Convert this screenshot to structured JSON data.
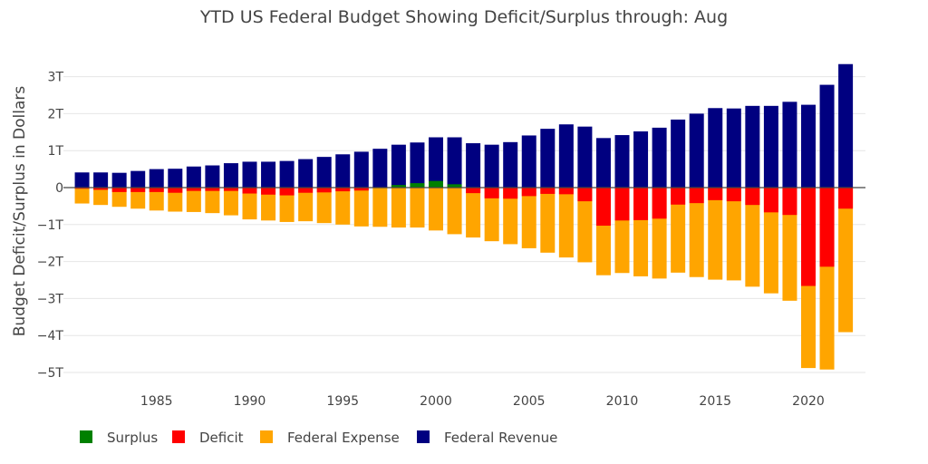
{
  "chart_data": {
    "type": "bar",
    "title": "YTD US Federal Budget Showing Deficit/Surplus through: Aug",
    "xlabel": "",
    "ylabel": "Budget Deficit/Surplus in Dollars",
    "ylim": [
      -5.5,
      3.6
    ],
    "xlim": [
      1980.4,
      2022.7
    ],
    "y_ticks": [
      3,
      2,
      1,
      0,
      -1,
      -2,
      -3,
      -4,
      -5
    ],
    "y_tick_labels": [
      "3T",
      "2T",
      "1T",
      "0",
      "−1T",
      "−2T",
      "−3T",
      "−4T",
      "−5T"
    ],
    "x_ticks": [
      1985,
      1990,
      1995,
      2000,
      2005,
      2010,
      2015,
      2020
    ],
    "x_tick_labels": [
      "1985",
      "1990",
      "1995",
      "2000",
      "2005",
      "2010",
      "2015",
      "2020"
    ],
    "grid": true,
    "barmode": "overlay",
    "legend_position": "bottom-left",
    "years": [
      1981,
      1982,
      1983,
      1984,
      1985,
      1986,
      1987,
      1988,
      1989,
      1990,
      1991,
      1992,
      1993,
      1994,
      1995,
      1996,
      1997,
      1998,
      1999,
      2000,
      2001,
      2002,
      2003,
      2004,
      2005,
      2006,
      2007,
      2008,
      2009,
      2010,
      2011,
      2012,
      2013,
      2014,
      2015,
      2016,
      2017,
      2018,
      2019,
      2020,
      2021,
      2022
    ],
    "series": [
      {
        "name": "Federal Revenue",
        "color": "#000080",
        "values": [
          0.41,
          0.41,
          0.4,
          0.45,
          0.5,
          0.51,
          0.57,
          0.6,
          0.66,
          0.7,
          0.7,
          0.72,
          0.77,
          0.83,
          0.9,
          0.97,
          1.05,
          1.16,
          1.22,
          1.36,
          1.36,
          1.2,
          1.16,
          1.23,
          1.41,
          1.59,
          1.71,
          1.65,
          1.34,
          1.42,
          1.52,
          1.62,
          1.84,
          2.0,
          2.15,
          2.14,
          2.21,
          2.21,
          2.32,
          2.24,
          2.78,
          3.34
        ]
      },
      {
        "name": "Federal Expense",
        "color": "#FFA500",
        "values": [
          -0.43,
          -0.47,
          -0.52,
          -0.57,
          -0.62,
          -0.65,
          -0.66,
          -0.69,
          -0.75,
          -0.86,
          -0.89,
          -0.93,
          -0.91,
          -0.96,
          -1.0,
          -1.05,
          -1.06,
          -1.08,
          -1.08,
          -1.16,
          -1.26,
          -1.35,
          -1.45,
          -1.53,
          -1.64,
          -1.76,
          -1.89,
          -2.02,
          -2.37,
          -2.31,
          -2.4,
          -2.46,
          -2.3,
          -2.42,
          -2.49,
          -2.51,
          -2.68,
          -2.86,
          -3.06,
          -4.88,
          -4.92,
          -3.91
        ]
      },
      {
        "name": "Deficit",
        "color": "#FF0000",
        "values": [
          -0.03,
          -0.06,
          -0.12,
          -0.12,
          -0.12,
          -0.14,
          -0.09,
          -0.09,
          -0.09,
          -0.16,
          -0.19,
          -0.21,
          -0.14,
          -0.13,
          -0.1,
          -0.08,
          0,
          0,
          0,
          0,
          0,
          -0.15,
          -0.29,
          -0.3,
          -0.23,
          -0.17,
          -0.18,
          -0.37,
          -1.03,
          -0.89,
          -0.88,
          -0.84,
          -0.46,
          -0.42,
          -0.34,
          -0.37,
          -0.47,
          -0.67,
          -0.74,
          -2.66,
          -2.14,
          -0.57
        ]
      },
      {
        "name": "Surplus",
        "color": "#008000",
        "values": [
          0,
          0,
          0,
          0,
          0,
          0,
          0,
          0,
          0,
          0,
          0,
          0,
          0,
          0,
          0,
          0,
          0.01,
          0.07,
          0.12,
          0.18,
          0.09,
          0,
          0,
          0,
          0,
          0,
          0,
          0,
          0,
          0,
          0,
          0,
          0,
          0,
          0,
          0,
          0,
          0,
          0,
          0,
          0,
          0
        ]
      }
    ],
    "legend_order": [
      "Surplus",
      "Deficit",
      "Federal Expense",
      "Federal Revenue"
    ]
  }
}
